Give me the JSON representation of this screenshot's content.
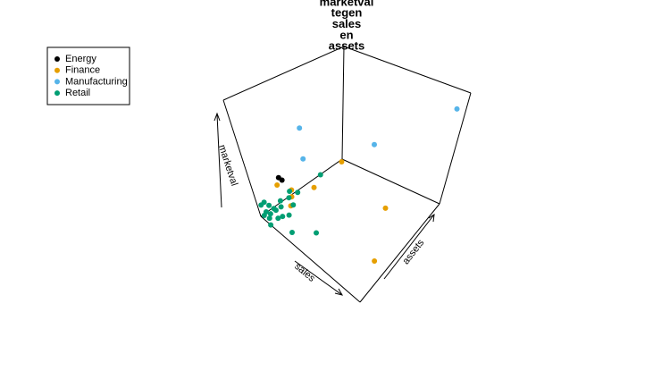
{
  "chart_data": {
    "type": "scatter3d",
    "title": [
      "marketval",
      "tegen",
      "sales",
      "en",
      "assets"
    ],
    "xlabel": "sales",
    "ylabel": "assets",
    "zlabel": "marketval",
    "xlim": [
      0,
      1
    ],
    "ylim": [
      0,
      1
    ],
    "zlim": [
      0,
      1
    ],
    "legend": "top-left",
    "series": [
      {
        "name": "Energy",
        "color": "#000000",
        "x": [
          0.25,
          0.28
        ],
        "y": [
          0.07,
          0.07
        ],
        "z": [
          0.48,
          0.48
        ]
      },
      {
        "name": "Finance",
        "color": "#E69F00",
        "x": [
          0.02,
          0.24,
          0.38,
          0.34,
          0.31,
          0.28,
          0.72,
          0.88
        ],
        "y": [
          0.97,
          0.05,
          0.05,
          0.3,
          0.1,
          0.1,
          0.65,
          0.33
        ],
        "z": [
          0,
          0.42,
          0.48,
          0.32,
          0.34,
          0.24,
          0.12,
          0
        ]
      },
      {
        "name": "Manufacturing",
        "color": "#56B4E9",
        "x": [
          0.28,
          0.25,
          0.5,
          0.95
        ],
        "y": [
          0.3,
          0.32,
          0.75,
          0.97
        ],
        "z": [
          0.8,
          0.5,
          0.5,
          0.86
        ]
      },
      {
        "name": "Retail",
        "color": "#009E73",
        "x": [
          0.01,
          0.06,
          0.11,
          0.16,
          0.05,
          0.1,
          0.18,
          0.24,
          0.18,
          0.25,
          0.32,
          0.01,
          0.07,
          0.38,
          0.46,
          0.26,
          0.36,
          0.39,
          0.22,
          0.38,
          0.25,
          0.1
        ],
        "y": [
          0.03,
          0.03,
          0.03,
          0.03,
          0.03,
          0.03,
          0.03,
          0.03,
          0.03,
          0.03,
          0.03,
          0.03,
          0.03,
          0.03,
          0.03,
          0.03,
          0.03,
          0.03,
          0.5,
          0.22,
          0.08,
          0
        ],
        "z": [
          0.09,
          0.15,
          0.16,
          0.17,
          0.06,
          0.08,
          0.1,
          0.16,
          0.17,
          0.25,
          0.23,
          0,
          0.02,
          0.48,
          0.53,
          0.31,
          0.41,
          0.37,
          0.24,
          0,
          0,
          0
        ]
      }
    ]
  }
}
